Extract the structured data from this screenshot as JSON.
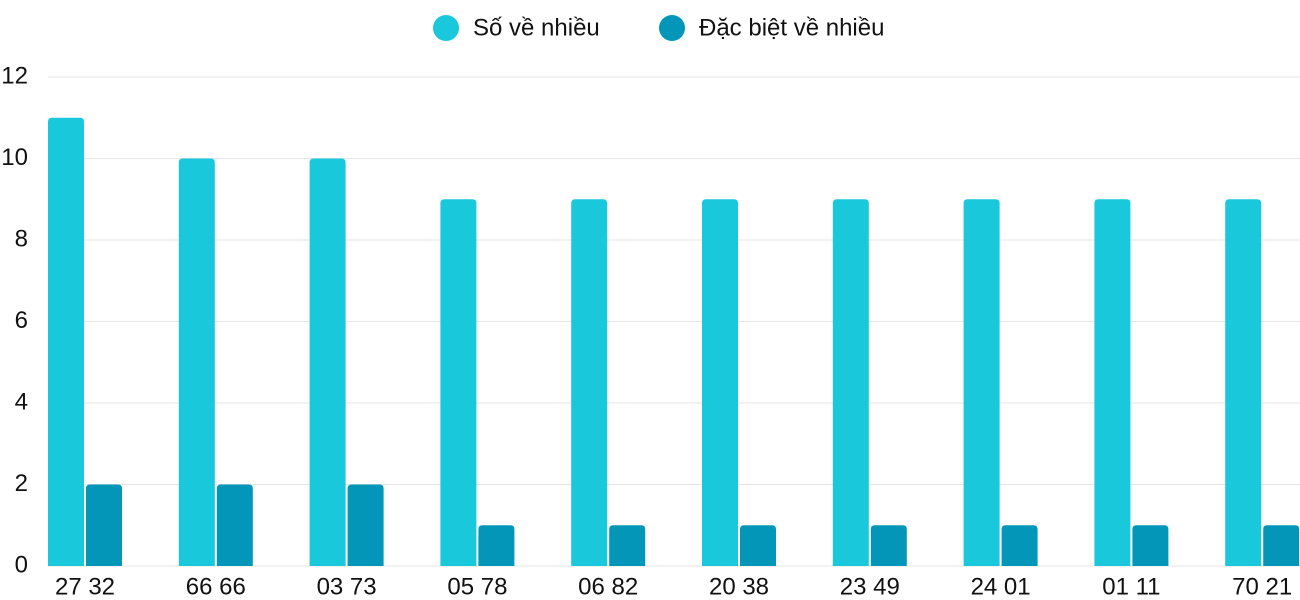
{
  "chart_data": {
    "type": "bar",
    "categories": [
      "27 32",
      "66 66",
      "03 73",
      "05 78",
      "06 82",
      "20 38",
      "23 49",
      "24 01",
      "01 11",
      "70 21"
    ],
    "series": [
      {
        "name": "Số về nhiều",
        "color": "#1ac8db",
        "values": [
          11,
          10,
          10,
          9,
          9,
          9,
          9,
          9,
          9,
          9
        ]
      },
      {
        "name": "Đặc biệt về nhiều",
        "color": "#0396b8",
        "values": [
          2,
          2,
          2,
          1,
          1,
          1,
          1,
          1,
          1,
          1
        ]
      }
    ],
    "ylim": [
      0,
      12
    ],
    "yticks": [
      0,
      2,
      4,
      6,
      8,
      10,
      12
    ],
    "grid": true,
    "legend": "top"
  }
}
